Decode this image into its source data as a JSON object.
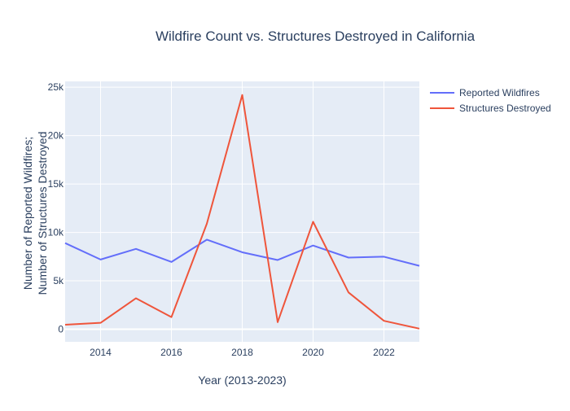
{
  "chart_data": {
    "type": "line",
    "title": "Wildfire Count vs. Structures Destroyed in California",
    "xlabel": "Year (2013-2023)",
    "ylabel": [
      "Number of Reported Wildfires;",
      "Number of Structures Destroyed"
    ],
    "x": [
      2013,
      2014,
      2015,
      2016,
      2017,
      2018,
      2019,
      2020,
      2021,
      2022,
      2023
    ],
    "series": [
      {
        "name": "Reported Wildfires",
        "color": "#636efa",
        "values": [
          8900,
          7200,
          8300,
          6950,
          9250,
          7950,
          7150,
          8650,
          7400,
          7490,
          6550
        ]
      },
      {
        "name": "Structures Destroyed",
        "color": "#ef553b",
        "values": [
          470,
          660,
          3200,
          1250,
          10900,
          24200,
          730,
          11100,
          3800,
          870,
          60
        ]
      }
    ],
    "xlim": [
      2013,
      2023
    ],
    "ylim": [
      -1300,
      25600
    ],
    "x_ticks": [
      2014,
      2016,
      2018,
      2020,
      2022
    ],
    "x_tick_labels": [
      "2014",
      "2016",
      "2018",
      "2020",
      "2022"
    ],
    "y_ticks": [
      0,
      5000,
      10000,
      15000,
      20000,
      25000
    ],
    "y_tick_labels": [
      "0",
      "5k",
      "10k",
      "15k",
      "20k",
      "25k"
    ],
    "grid": true,
    "legend_position": "top-right",
    "plot_background": "#e5ecf6",
    "text_color": "#2a3f5f"
  }
}
